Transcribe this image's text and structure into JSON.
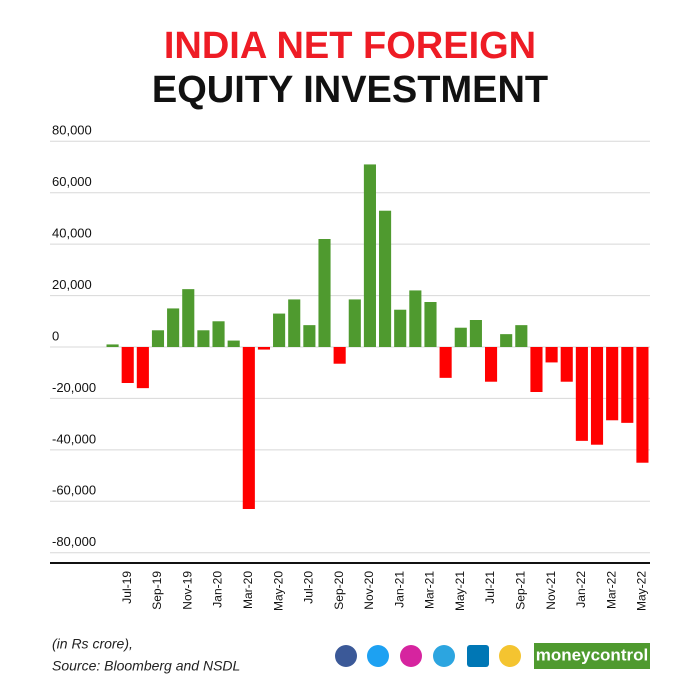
{
  "chart_data": {
    "type": "bar",
    "title": "INDIA NET FOREIGN",
    "subtitle": "EQUITY INVESTMENT",
    "note": "(in Rs crore),",
    "source": "Source: Bloomberg and NSDL",
    "brand": "moneycontrol",
    "categories": [
      null,
      "Jul-19",
      null,
      "Sep-19",
      null,
      "Nov-19",
      null,
      "Jan-20",
      null,
      "Mar-20",
      null,
      "May-20",
      null,
      "Jul-20",
      null,
      "Sep-20",
      null,
      "Nov-20",
      null,
      "Jan-21",
      null,
      "Mar-21",
      null,
      "May-21",
      null,
      "Jul-21",
      null,
      "Sep-21",
      null,
      "Nov-21",
      null,
      "Jan-22",
      null,
      "Mar-22",
      null,
      "May-22"
    ],
    "values": [
      1000,
      -14000,
      -16000,
      6500,
      15000,
      22500,
      6500,
      10000,
      2500,
      -63000,
      -1000,
      13000,
      18500,
      8500,
      42000,
      -6500,
      18500,
      71000,
      53000,
      14500,
      22000,
      17500,
      -12000,
      7500,
      10500,
      -13500,
      5000,
      8500,
      -17500,
      -6000,
      -13500,
      -36500,
      -38000,
      -28500,
      -29500,
      -45000
    ],
    "positive_color": "#4f9a2f",
    "negative_color": "#ff0000",
    "ylim": [
      -84000,
      84000
    ],
    "yticks": [
      {
        "value": -80000,
        "label": "-80,000"
      },
      {
        "value": -60000,
        "label": "-60,000"
      },
      {
        "value": -40000,
        "label": "-40,000"
      },
      {
        "value": -20000,
        "label": "-20,000"
      },
      0,
      {
        "value": 20000,
        "label": "20,000"
      },
      {
        "value": 40000,
        "label": "40,000"
      },
      {
        "value": 60000,
        "label": "60,000"
      },
      {
        "value": 80000,
        "label": "80,000"
      }
    ],
    "grid": true
  }
}
